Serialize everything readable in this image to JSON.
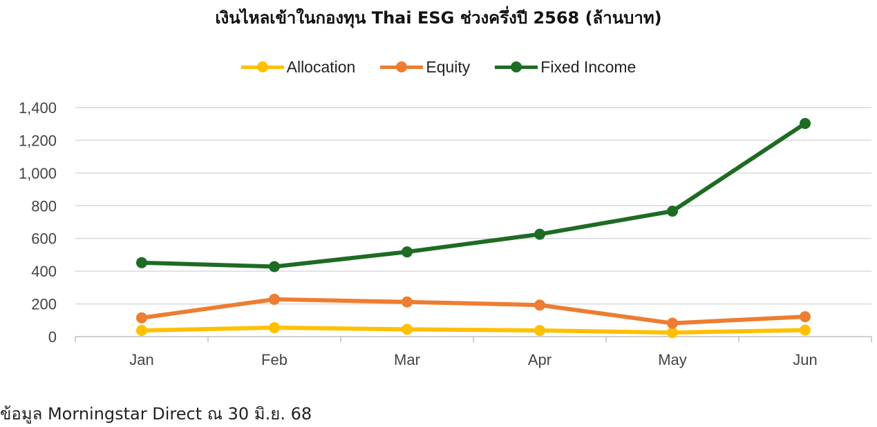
{
  "chart_data": {
    "type": "line",
    "title": "เงินไหลเข้าในกองทุน Thai ESG ช่วงครึ่งปี 2568 (ล้านบาท)",
    "categories": [
      "Jan",
      "Feb",
      "Mar",
      "Apr",
      "May",
      "Jun"
    ],
    "y_ticks": [
      "0",
      "200",
      "400",
      "600",
      "800",
      "1,000",
      "1,200",
      "1,400"
    ],
    "ylim": [
      0,
      1400
    ],
    "grid": true,
    "legend_position": "top",
    "series": [
      {
        "name": "Allocation",
        "color": "#FFC000",
        "values": [
          38,
          55,
          45,
          38,
          25,
          40
        ]
      },
      {
        "name": "Equity",
        "color": "#ED7D31",
        "values": [
          115,
          228,
          212,
          193,
          82,
          122
        ]
      },
      {
        "name": "Fixed Income",
        "color": "#1E6B24",
        "values": [
          452,
          428,
          518,
          626,
          767,
          1303
        ]
      }
    ]
  },
  "source_note": "ข้อมูล Morningstar Direct ณ 30 มิ.ย. 68"
}
